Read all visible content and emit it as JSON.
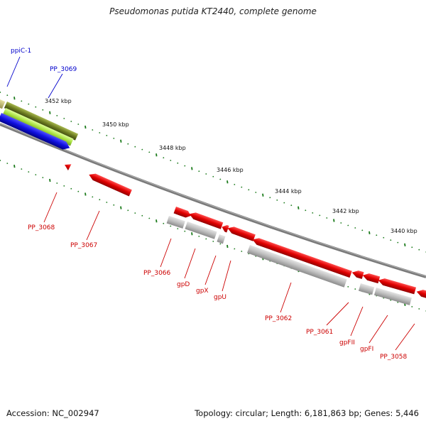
{
  "title": "Pseudomonas putida KT2440, complete genome",
  "footer": {
    "accession": "Accession: NC_002947",
    "stats": "Topology: circular; Length: 6,181,863 bp; Genes: 5,446"
  },
  "colors": {
    "forward_gene": "#1010e0",
    "reverse_gene": "#e00000",
    "gene_highlight": "#9acd32",
    "gene_olive": "#6b8e23",
    "gene_grey": "#b8b8b8",
    "backbone": "#777777",
    "tick": "#1a7a1a",
    "forward_label": "#0000cc",
    "reverse_label": "#cc0000"
  },
  "scale_labels": [
    "3452 kbp",
    "3450 kbp",
    "3448 kbp",
    "3446 kbp",
    "3444 kbp",
    "3442 kbp",
    "3440 kbp"
  ],
  "forward_genes": [
    "ppiC-1",
    "PP_3069"
  ],
  "reverse_genes": [
    "PP_3068",
    "PP_3067",
    "PP_3066",
    "gpD",
    "gpX",
    "gpU",
    "PP_3062",
    "PP_3061",
    "gpFII",
    "gpFI",
    "PP_3058"
  ]
}
